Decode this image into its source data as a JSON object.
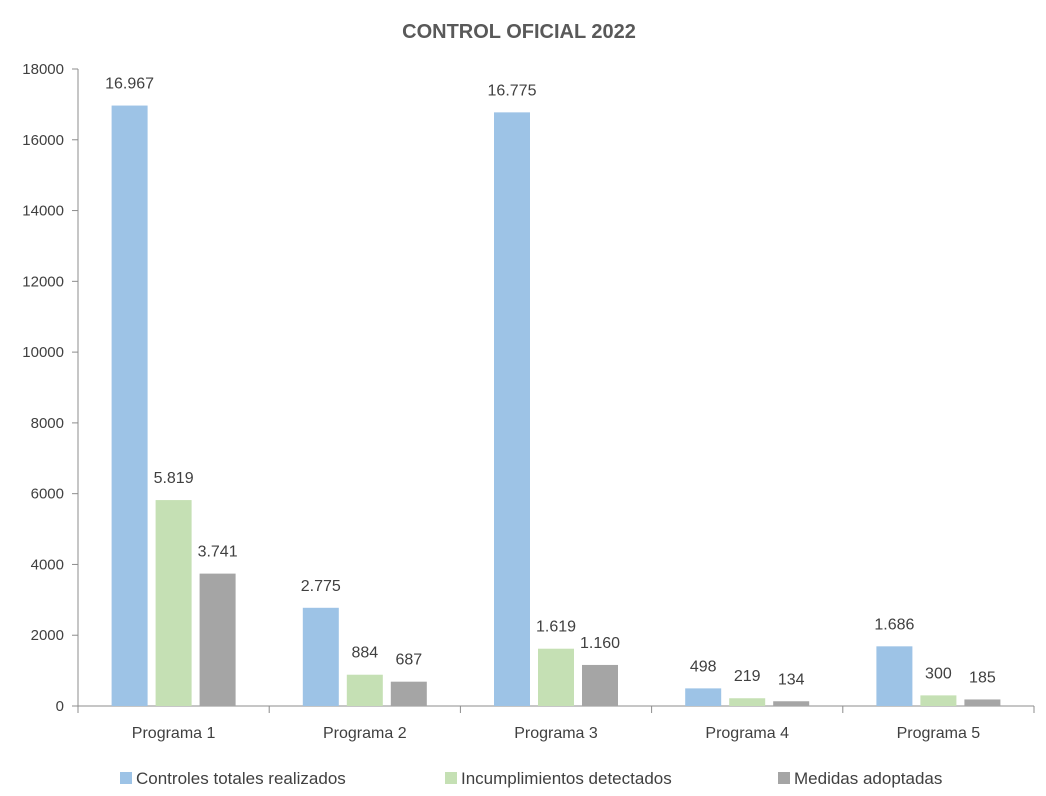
{
  "chart_data": {
    "type": "bar",
    "title": "CONTROL OFICIAL 2022",
    "xlabel": "",
    "ylabel": "",
    "ylim": [
      0,
      18000
    ],
    "yticks": [
      "0",
      "2000",
      "4000",
      "6000",
      "8000",
      "10000",
      "12000",
      "14000",
      "16000",
      "18000"
    ],
    "categories": [
      "Programa 1",
      "Programa 2",
      "Programa 3",
      "Programa 4",
      "Programa 5"
    ],
    "series": [
      {
        "name": "Controles totales realizados",
        "color": "#9dc3e6",
        "values": [
          16967,
          2775,
          16775,
          498,
          1686
        ],
        "labels": [
          "16.967",
          "2.775",
          "16.775",
          "498",
          "1.686"
        ]
      },
      {
        "name": "Incumplimientos detectados",
        "color": "#c5e0b4",
        "values": [
          5819,
          884,
          1619,
          219,
          300
        ],
        "labels": [
          "5.819",
          "884",
          "1.619",
          "219",
          "300"
        ]
      },
      {
        "name": "Medidas adoptadas",
        "color": "#a5a5a5",
        "values": [
          3741,
          687,
          1160,
          134,
          185
        ],
        "labels": [
          "3.741",
          "687",
          "1.160",
          "134",
          "185"
        ]
      }
    ],
    "grid": false,
    "legend_position": "bottom"
  }
}
